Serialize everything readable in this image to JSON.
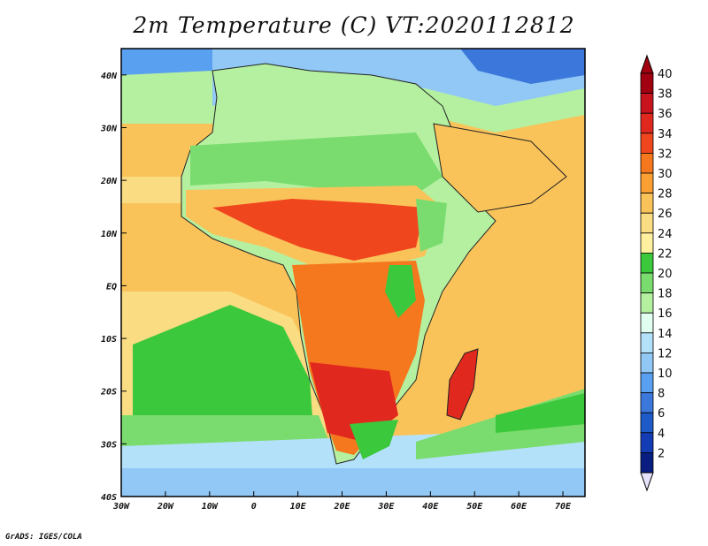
{
  "title": "2m Temperature (C) VT:2020112812",
  "credit": "GrADS: IGES/COLA",
  "map": {
    "lon_range": [
      -30,
      75
    ],
    "lat_range": [
      -40,
      45
    ],
    "x_ticks": [
      {
        "value": -30,
        "label": "30W"
      },
      {
        "value": -20,
        "label": "20W"
      },
      {
        "value": -10,
        "label": "10W"
      },
      {
        "value": 0,
        "label": "0"
      },
      {
        "value": 10,
        "label": "10E"
      },
      {
        "value": 20,
        "label": "20E"
      },
      {
        "value": 30,
        "label": "30E"
      },
      {
        "value": 40,
        "label": "40E"
      },
      {
        "value": 50,
        "label": "50E"
      },
      {
        "value": 60,
        "label": "60E"
      },
      {
        "value": 70,
        "label": "70E"
      }
    ],
    "y_ticks": [
      {
        "value": 40,
        "label": "40N"
      },
      {
        "value": 30,
        "label": "30N"
      },
      {
        "value": 20,
        "label": "20N"
      },
      {
        "value": 10,
        "label": "10N"
      },
      {
        "value": 0,
        "label": "EQ"
      },
      {
        "value": -10,
        "label": "10S"
      },
      {
        "value": -20,
        "label": "20S"
      },
      {
        "value": -30,
        "label": "30S"
      },
      {
        "value": -40,
        "label": "40S"
      }
    ],
    "grid": false
  },
  "colorbar": {
    "labels": [
      "40",
      "38",
      "36",
      "34",
      "32",
      "30",
      "28",
      "26",
      "24",
      "22",
      "20",
      "18",
      "16",
      "14",
      "12",
      "10",
      "8",
      "6",
      "4",
      "2"
    ],
    "colors": [
      "#a0000f",
      "#c8141e",
      "#e1281e",
      "#f0461e",
      "#f5781e",
      "#faa032",
      "#fac35a",
      "#fadc82",
      "#fff0a0",
      "#3cc83c",
      "#7adc6e",
      "#b4f0a0",
      "#e1fff0",
      "#b4e1fa",
      "#91c8f5",
      "#5aa0f0",
      "#3c78dc",
      "#1e5ac8",
      "#143cb4",
      "#0a1e82"
    ],
    "top_color": "#a0000f",
    "bottom_color": "#e6e1fa"
  }
}
